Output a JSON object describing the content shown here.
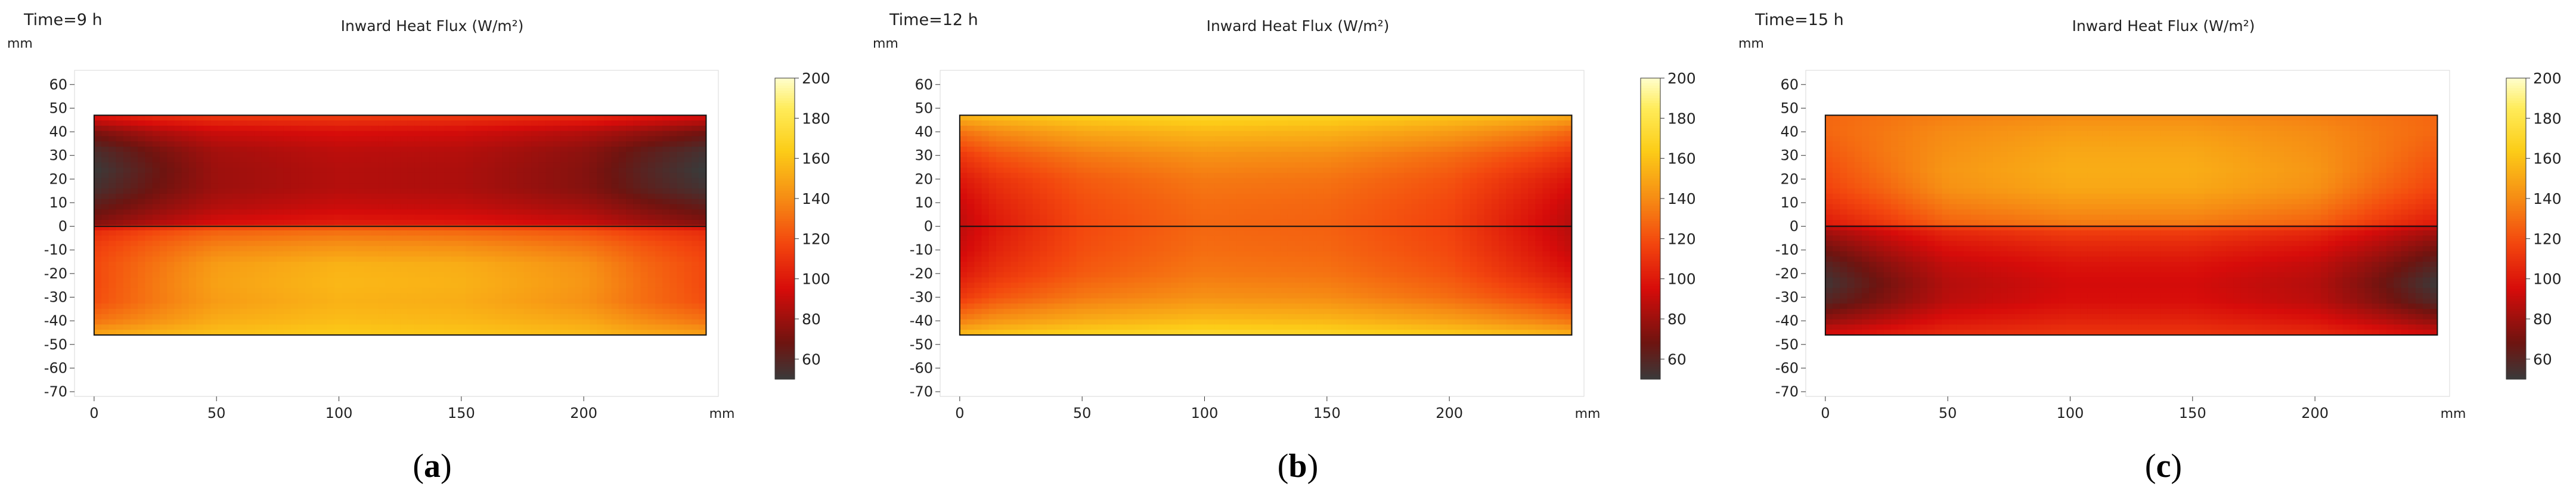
{
  "chart_data": [
    {
      "type": "heatmap",
      "time_label": "Time=9 h",
      "title": "Inward Heat Flux (W/m²)",
      "unit": "mm",
      "panel_label": "a",
      "x_ticks": [
        0,
        50,
        100,
        150,
        200
      ],
      "y_ticks": [
        60,
        50,
        40,
        30,
        20,
        10,
        0,
        -10,
        -20,
        -30,
        -40,
        -50,
        -60,
        -70
      ],
      "xlim": [
        -8,
        255
      ],
      "ylim": [
        -72,
        66
      ],
      "domain_x": [
        0,
        250
      ],
      "domain_y": [
        -46,
        47
      ],
      "colorbar": {
        "ticks": [
          200,
          180,
          160,
          140,
          120,
          100,
          80,
          60
        ],
        "min": 50,
        "max": 200
      },
      "field": {
        "y": [
          47,
          40,
          32,
          24,
          16,
          8,
          1,
          -1,
          -8,
          -16,
          -24,
          -32,
          -40,
          -46
        ],
        "x": [
          0,
          25,
          50,
          100,
          150,
          200,
          225,
          250
        ],
        "values": [
          [
            100,
            108,
            113,
            115,
            113,
            108,
            102,
            96
          ],
          [
            72,
            84,
            92,
            96,
            94,
            86,
            78,
            70
          ],
          [
            56,
            70,
            82,
            88,
            86,
            76,
            64,
            54
          ],
          [
            50,
            66,
            80,
            86,
            84,
            74,
            60,
            49
          ],
          [
            54,
            68,
            80,
            86,
            84,
            74,
            62,
            53
          ],
          [
            64,
            76,
            86,
            92,
            90,
            82,
            72,
            64
          ],
          [
            74,
            86,
            96,
            102,
            100,
            92,
            82,
            74
          ],
          [
            106,
            116,
            124,
            128,
            126,
            120,
            112,
            106
          ],
          [
            114,
            126,
            136,
            142,
            140,
            132,
            122,
            114
          ],
          [
            118,
            132,
            146,
            154,
            152,
            142,
            128,
            118
          ],
          [
            118,
            134,
            148,
            156,
            154,
            144,
            130,
            118
          ],
          [
            120,
            134,
            146,
            154,
            152,
            142,
            130,
            120
          ],
          [
            132,
            142,
            152,
            158,
            156,
            150,
            140,
            132
          ],
          [
            150,
            156,
            160,
            164,
            162,
            158,
            152,
            148
          ]
        ]
      }
    },
    {
      "type": "heatmap",
      "time_label": "Time=12 h",
      "title": "Inward Heat Flux (W/m²)",
      "unit": "mm",
      "panel_label": "b",
      "x_ticks": [
        0,
        50,
        100,
        150,
        200
      ],
      "y_ticks": [
        60,
        50,
        40,
        30,
        20,
        10,
        0,
        -10,
        -20,
        -30,
        -40,
        -50,
        -60,
        -70
      ],
      "xlim": [
        -8,
        255
      ],
      "ylim": [
        -72,
        66
      ],
      "domain_x": [
        0,
        250
      ],
      "domain_y": [
        -46,
        47
      ],
      "colorbar": {
        "ticks": [
          200,
          180,
          160,
          140,
          120,
          100,
          80,
          60
        ],
        "min": 50,
        "max": 200
      },
      "field": {
        "y": [
          47,
          40,
          30,
          20,
          10,
          0,
          -10,
          -20,
          -30,
          -40,
          -46
        ],
        "x": [
          0,
          15,
          50,
          100,
          150,
          200,
          235,
          250
        ],
        "values": [
          [
            156,
            160,
            166,
            170,
            168,
            162,
            156,
            152
          ],
          [
            132,
            140,
            150,
            156,
            154,
            146,
            136,
            128
          ],
          [
            112,
            122,
            134,
            142,
            140,
            130,
            118,
            110
          ],
          [
            100,
            110,
            124,
            134,
            132,
            122,
            106,
            98
          ],
          [
            92,
            104,
            120,
            130,
            128,
            118,
            100,
            90
          ],
          [
            88,
            100,
            118,
            128,
            126,
            116,
            96,
            86
          ],
          [
            92,
            104,
            120,
            130,
            128,
            118,
            100,
            90
          ],
          [
            100,
            110,
            124,
            134,
            132,
            122,
            106,
            98
          ],
          [
            112,
            122,
            134,
            142,
            140,
            130,
            118,
            110
          ],
          [
            136,
            144,
            152,
            158,
            156,
            148,
            138,
            132
          ],
          [
            158,
            162,
            168,
            172,
            170,
            164,
            158,
            154
          ]
        ]
      }
    },
    {
      "type": "heatmap",
      "time_label": "Time=15 h",
      "title": "Inward Heat Flux (W/m²)",
      "unit": "mm",
      "panel_label": "c",
      "x_ticks": [
        0,
        50,
        100,
        150,
        200
      ],
      "y_ticks": [
        60,
        50,
        40,
        30,
        20,
        10,
        0,
        -10,
        -20,
        -30,
        -40,
        -50,
        -60,
        -70
      ],
      "xlim": [
        -8,
        255
      ],
      "ylim": [
        -72,
        66
      ],
      "domain_x": [
        0,
        250
      ],
      "domain_y": [
        -46,
        47
      ],
      "colorbar": {
        "ticks": [
          200,
          180,
          160,
          140,
          120,
          100,
          80,
          60
        ],
        "min": 50,
        "max": 200
      },
      "field": {
        "y": [
          47,
          40,
          32,
          24,
          16,
          8,
          1,
          -1,
          -8,
          -16,
          -24,
          -32,
          -40,
          -46
        ],
        "x": [
          0,
          25,
          50,
          100,
          150,
          200,
          225,
          250
        ],
        "values": [
          [
            128,
            132,
            136,
            140,
            140,
            136,
            132,
            128
          ],
          [
            128,
            134,
            140,
            146,
            146,
            140,
            134,
            128
          ],
          [
            124,
            134,
            142,
            150,
            150,
            142,
            134,
            124
          ],
          [
            120,
            132,
            144,
            152,
            152,
            144,
            132,
            120
          ],
          [
            116,
            128,
            142,
            150,
            150,
            142,
            128,
            116
          ],
          [
            108,
            120,
            134,
            142,
            142,
            134,
            120,
            108
          ],
          [
            100,
            112,
            126,
            134,
            134,
            126,
            112,
            100
          ],
          [
            84,
            96,
            108,
            116,
            116,
            108,
            96,
            84
          ],
          [
            72,
            86,
            98,
            106,
            106,
            98,
            86,
            72
          ],
          [
            60,
            76,
            90,
            98,
            98,
            90,
            76,
            60
          ],
          [
            52,
            70,
            86,
            94,
            94,
            86,
            70,
            50
          ],
          [
            60,
            74,
            88,
            96,
            96,
            88,
            74,
            58
          ],
          [
            78,
            88,
            98,
            104,
            104,
            98,
            88,
            76
          ],
          [
            96,
            102,
            108,
            112,
            112,
            108,
            102,
            94
          ]
        ]
      }
    }
  ]
}
